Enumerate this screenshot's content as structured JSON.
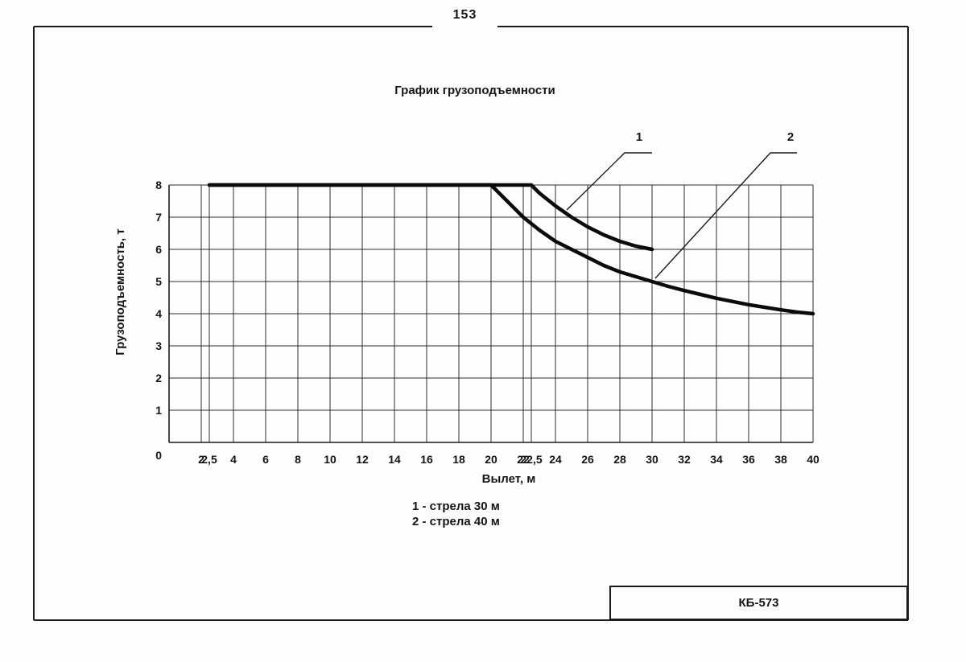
{
  "page": {
    "number": "153",
    "model_box_label": "КБ-573"
  },
  "chart": {
    "title": "График грузоподъемности",
    "x_axis_label": "Вылет, м",
    "y_axis_label": "Грузоподъемность, т",
    "curve1_label": "1",
    "curve2_label": "2",
    "legend_line1": "1 - стрела 30 м",
    "legend_line2": "2 - стрела 40 м"
  },
  "chart_data": {
    "type": "line",
    "title": "График грузоподъемности",
    "xlabel": "Вылет, м",
    "ylabel": "Грузоподъемность, т",
    "xlim": [
      0,
      40
    ],
    "ylim": [
      0,
      8
    ],
    "grid": true,
    "legend_position": "below",
    "x_ticks": [
      {
        "v": 2,
        "label": "2"
      },
      {
        "v": 2.5,
        "label": "2,5"
      },
      {
        "v": 4,
        "label": "4"
      },
      {
        "v": 6,
        "label": "6"
      },
      {
        "v": 8,
        "label": "8"
      },
      {
        "v": 10,
        "label": "10"
      },
      {
        "v": 12,
        "label": "12"
      },
      {
        "v": 14,
        "label": "14"
      },
      {
        "v": 16,
        "label": "16"
      },
      {
        "v": 18,
        "label": "18"
      },
      {
        "v": 20,
        "label": "20"
      },
      {
        "v": 22,
        "label": "22"
      },
      {
        "v": 22.5,
        "label": "22,5"
      },
      {
        "v": 24,
        "label": "24"
      },
      {
        "v": 26,
        "label": "26"
      },
      {
        "v": 28,
        "label": "28"
      },
      {
        "v": 30,
        "label": "30"
      },
      {
        "v": 32,
        "label": "32"
      },
      {
        "v": 34,
        "label": "34"
      },
      {
        "v": 36,
        "label": "36"
      },
      {
        "v": 38,
        "label": "38"
      },
      {
        "v": 40,
        "label": "40"
      }
    ],
    "y_ticks": [
      {
        "v": 0,
        "label": "0"
      },
      {
        "v": 1,
        "label": "1"
      },
      {
        "v": 2,
        "label": "2"
      },
      {
        "v": 3,
        "label": "3"
      },
      {
        "v": 4,
        "label": "4"
      },
      {
        "v": 5,
        "label": "5"
      },
      {
        "v": 6,
        "label": "6"
      },
      {
        "v": 7,
        "label": "7"
      },
      {
        "v": 8,
        "label": "8"
      }
    ],
    "series": [
      {
        "name": "1",
        "legend": "стрела 30 м",
        "points": [
          [
            2.5,
            8
          ],
          [
            22.5,
            8
          ],
          [
            23,
            7.75
          ],
          [
            24,
            7.35
          ],
          [
            25,
            7.0
          ],
          [
            26,
            6.7
          ],
          [
            27,
            6.45
          ],
          [
            28,
            6.25
          ],
          [
            29,
            6.1
          ],
          [
            30,
            6.0
          ]
        ]
      },
      {
        "name": "2",
        "legend": "стрела 40 м",
        "points": [
          [
            2.5,
            8
          ],
          [
            20,
            8
          ],
          [
            21,
            7.5
          ],
          [
            22,
            7.0
          ],
          [
            23,
            6.6
          ],
          [
            24,
            6.25
          ],
          [
            25,
            6.0
          ],
          [
            26,
            5.75
          ],
          [
            27,
            5.5
          ],
          [
            28,
            5.3
          ],
          [
            29,
            5.15
          ],
          [
            30,
            5.0
          ],
          [
            31,
            4.85
          ],
          [
            32,
            4.72
          ],
          [
            33,
            4.6
          ],
          [
            34,
            4.48
          ],
          [
            35,
            4.38
          ],
          [
            36,
            4.28
          ],
          [
            37,
            4.2
          ],
          [
            38,
            4.12
          ],
          [
            39,
            4.05
          ],
          [
            40,
            4.0
          ]
        ]
      }
    ]
  }
}
